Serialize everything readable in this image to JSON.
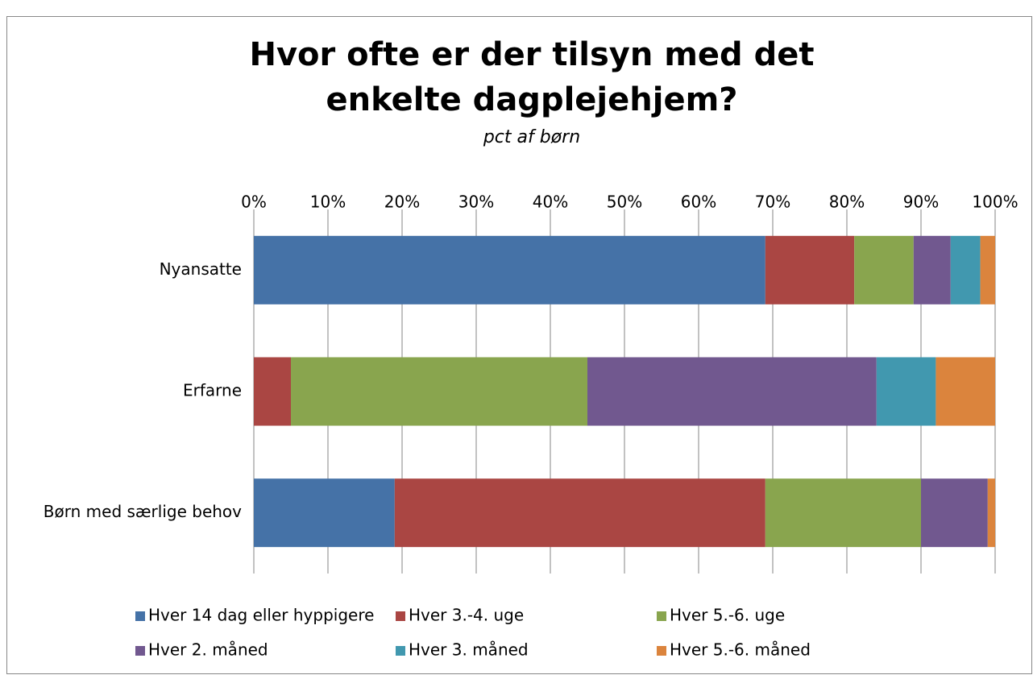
{
  "chart_data": {
    "type": "stacked_bar_horizontal",
    "title": "Hvor ofte er der tilsyn med det enkelte dagplejehjem?",
    "subtitle": "pct af børn",
    "categories": [
      "Nyansatte",
      "Erfarne",
      "Børn med særlige behov"
    ],
    "series": [
      {
        "name": "Hver 14 dag eller hyppigere",
        "color": "#4572a7",
        "values": [
          69,
          0,
          19
        ]
      },
      {
        "name": "Hver 3.-4. uge",
        "color": "#aa4643",
        "values": [
          12,
          5,
          50
        ]
      },
      {
        "name": "Hver 5.-6. uge",
        "color": "#89a54e",
        "values": [
          8,
          40,
          21
        ]
      },
      {
        "name": "Hver 2. måned",
        "color": "#71588f",
        "values": [
          5,
          39,
          9
        ]
      },
      {
        "name": "Hver 3. måned",
        "color": "#4198af",
        "values": [
          4,
          8,
          0
        ]
      },
      {
        "name": "Hver 5.-6. måned",
        "color": "#db843d",
        "values": [
          2,
          8,
          1
        ]
      }
    ],
    "xlim": [
      0,
      100
    ],
    "xticks": [
      {
        "value": 0,
        "label": "0%"
      },
      {
        "value": 10,
        "label": "10%"
      },
      {
        "value": 20,
        "label": "20%"
      },
      {
        "value": 30,
        "label": "30%"
      },
      {
        "value": 40,
        "label": "40%"
      },
      {
        "value": 50,
        "label": "50%"
      },
      {
        "value": 60,
        "label": "60%"
      },
      {
        "value": 70,
        "label": "70%"
      },
      {
        "value": 80,
        "label": "80%"
      },
      {
        "value": 90,
        "label": "90%"
      },
      {
        "value": 100,
        "label": "100%"
      }
    ],
    "grid": true,
    "legend": "bottom"
  }
}
